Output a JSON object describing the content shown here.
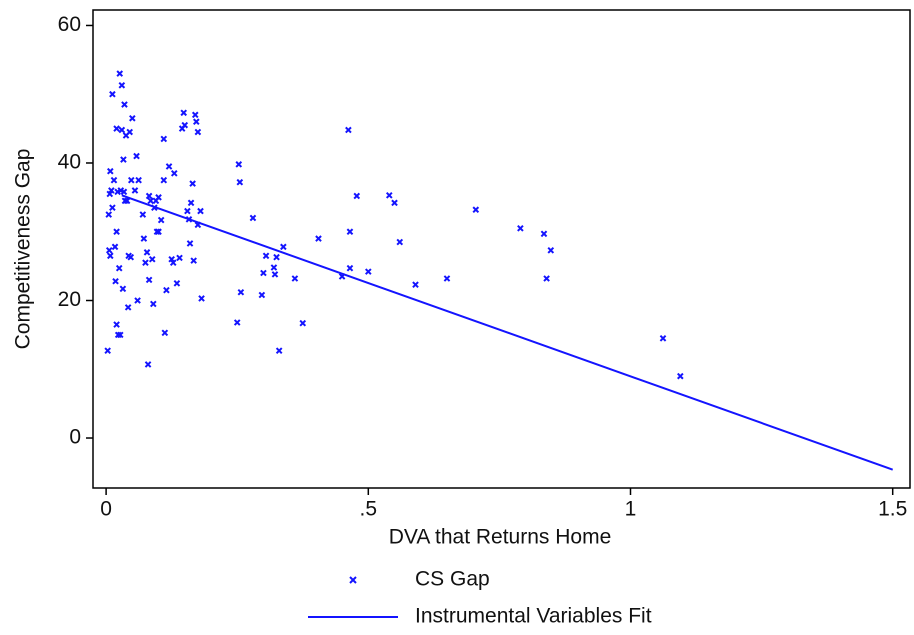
{
  "chart_data": {
    "type": "scatter",
    "xlabel": "DVA that Returns Home",
    "ylabel": "Competitiveness Gap",
    "xlim": [
      -0.025,
      1.533
    ],
    "ylim": [
      -7.27,
      62.25
    ],
    "xticks": [
      0,
      {
        "value": 0.5,
        "label": ".5"
      },
      1,
      1.5
    ],
    "yticks": [
      0,
      20,
      40,
      60
    ],
    "grid": false,
    "legend": "bottom",
    "series": [
      {
        "name": "CS Gap",
        "type": "scatter",
        "color": "#1414ff",
        "x": [
          0.003,
          0.005,
          0.007,
          0.008,
          0.006,
          0.008,
          0.01,
          0.012,
          0.012,
          0.015,
          0.017,
          0.018,
          0.02,
          0.02,
          0.02,
          0.022,
          0.023,
          0.025,
          0.026,
          0.027,
          0.028,
          0.03,
          0.03,
          0.032,
          0.033,
          0.034,
          0.035,
          0.036,
          0.038,
          0.04,
          0.042,
          0.043,
          0.045,
          0.047,
          0.048,
          0.05,
          0.055,
          0.058,
          0.06,
          0.062,
          0.07,
          0.072,
          0.075,
          0.078,
          0.08,
          0.082,
          0.082,
          0.085,
          0.088,
          0.09,
          0.092,
          0.095,
          0.097,
          0.1,
          0.1,
          0.105,
          0.11,
          0.11,
          0.112,
          0.115,
          0.12,
          0.125,
          0.128,
          0.13,
          0.135,
          0.14,
          0.145,
          0.148,
          0.15,
          0.155,
          0.158,
          0.16,
          0.162,
          0.165,
          0.167,
          0.17,
          0.172,
          0.175,
          0.175,
          0.18,
          0.182,
          0.25,
          0.253,
          0.255,
          0.257,
          0.28,
          0.297,
          0.3,
          0.305,
          0.32,
          0.322,
          0.325,
          0.33,
          0.338,
          0.36,
          0.375,
          0.405,
          0.45,
          0.462,
          0.465,
          0.465,
          0.478,
          0.5,
          0.54,
          0.55,
          0.56,
          0.59,
          0.65,
          0.705,
          0.79,
          0.835,
          0.84,
          0.848,
          1.062,
          1.095
        ],
        "values": [
          12.7,
          32.5,
          35.5,
          38.8,
          27.3,
          26.5,
          36,
          33.5,
          50,
          37.5,
          27.8,
          22.8,
          16.5,
          30,
          45,
          35.8,
          15,
          24.7,
          53,
          15,
          36,
          51.3,
          44.8,
          21.7,
          40.5,
          35.8,
          48.5,
          34.5,
          44,
          34.5,
          19,
          26.5,
          44.5,
          26.3,
          37.5,
          46.5,
          36,
          41,
          20,
          37.5,
          32.5,
          29,
          25.5,
          27,
          10.7,
          23,
          35.2,
          34.5,
          26,
          19.5,
          33.5,
          34.5,
          30,
          30,
          35,
          31.7,
          37.5,
          43.5,
          15.3,
          21.5,
          39.5,
          26,
          25.5,
          38.5,
          22.5,
          26.2,
          45,
          47.3,
          45.5,
          33,
          31.8,
          28.3,
          34.2,
          37,
          25.8,
          47,
          46,
          31,
          44.5,
          33,
          20.3,
          16.8,
          39.8,
          37.2,
          21.2,
          32,
          20.8,
          24,
          26.5,
          24.8,
          23.8,
          26.3,
          12.7,
          27.8,
          23.2,
          16.7,
          29,
          23.5,
          44.8,
          30,
          24.7,
          35.2,
          24.2,
          35.3,
          34.2,
          28.5,
          22.3,
          23.2,
          33.2,
          30.5,
          29.7,
          23.2,
          27.3,
          14.5,
          9
        ]
      },
      {
        "name": "Instrumental Variables Fit",
        "type": "line",
        "color": "#1414ff",
        "x": [
          0.03,
          1.5
        ],
        "values": [
          35.3,
          -4.6
        ]
      }
    ]
  }
}
